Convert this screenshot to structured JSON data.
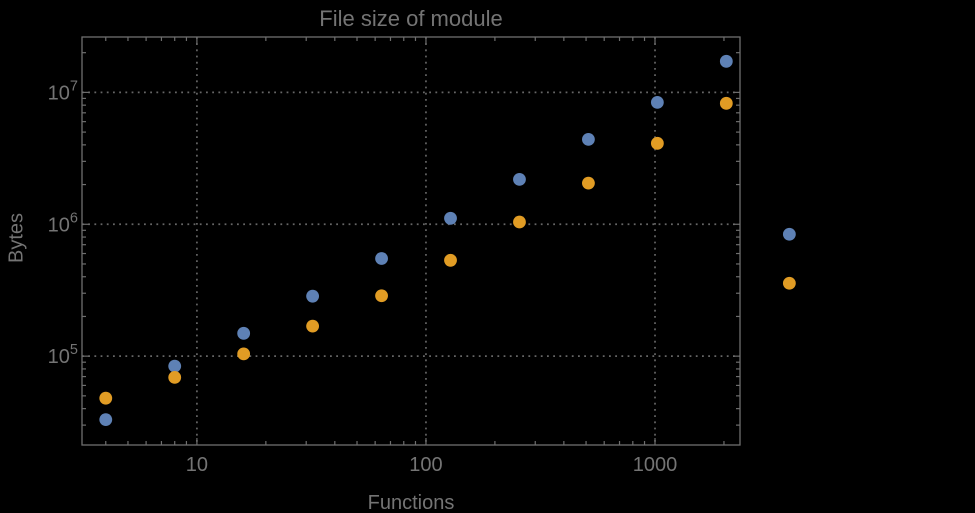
{
  "chart_data": {
    "type": "scatter",
    "title": "File size of module",
    "xlabel": "Functions",
    "ylabel": "Bytes",
    "xscale": "log",
    "yscale": "log",
    "xlim": [
      3.15,
      2350
    ],
    "ylim": [
      21200,
      26300000
    ],
    "grid": "dotted-major",
    "legend": "none",
    "x": [
      4,
      8,
      16,
      32,
      64,
      128,
      256,
      512,
      1024,
      2048,
      3860
    ],
    "series": [
      {
        "name": "series-1-blue",
        "color": "#5E81B5",
        "values": [
          33000,
          84000,
          149000,
          285000,
          550000,
          1110000,
          2190000,
          4400000,
          8400000,
          17200000,
          840000
        ]
      },
      {
        "name": "series-2-orange",
        "color": "#E19C24",
        "values": [
          48000,
          69000,
          104000,
          169000,
          287000,
          533000,
          1040000,
          2050000,
          4110000,
          8260000,
          357000
        ]
      }
    ],
    "xticks": {
      "values": [
        10,
        100,
        1000
      ],
      "labels": [
        "10",
        "100",
        "1000"
      ]
    },
    "yticks": {
      "values": [
        100000,
        1000000,
        10000000
      ],
      "base": "10",
      "exponents": [
        "5",
        "6",
        "7"
      ]
    },
    "colors": {
      "background": "#000000",
      "frame": "#6e6e6e",
      "grid": "#666666",
      "text": "#747474",
      "tick_label": "#747474"
    }
  }
}
